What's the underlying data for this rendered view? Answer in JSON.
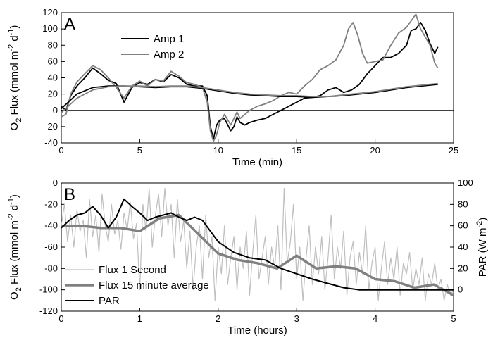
{
  "chart_data": [
    {
      "panel_label": "A",
      "type": "line",
      "xlabel": "Time (min)",
      "ylabel_main": "O",
      "ylabel_sub1": "2",
      "ylabel_mid": " Flux (mmol m",
      "ylabel_sup1": "-2",
      "ylabel_mid2": " d",
      "ylabel_sup2": "-1",
      "ylabel_end": ")",
      "xlim": [
        0,
        25
      ],
      "ylim": [
        -40,
        120
      ],
      "xticks": [
        "0",
        "5",
        "10",
        "15",
        "20",
        "25"
      ],
      "yticks": [
        "-40",
        "-20",
        "0",
        "20",
        "40",
        "60",
        "80",
        "100",
        "120"
      ],
      "zero_line": true,
      "legend": {
        "placement": "upper-left",
        "entries": [
          "Amp 1",
          "Amp 2"
        ]
      },
      "series": [
        {
          "name": "Amp 1",
          "color": "#000000",
          "x": [
            0,
            0.3,
            0.6,
            1.0,
            1.5,
            2.0,
            2.5,
            3.0,
            3.5,
            4.0,
            4.5,
            5.0,
            5.5,
            6.0,
            6.5,
            7.0,
            7.5,
            8.0,
            8.5,
            9.0,
            9.3,
            9.5,
            9.7,
            9.9,
            10.1,
            10.4,
            10.8,
            11.0,
            11.2,
            11.4,
            11.7,
            12.0,
            12.5,
            13.0,
            13.5,
            14.0,
            14.5,
            15.0,
            15.5,
            16.0,
            16.5,
            17.0,
            17.5,
            18.0,
            18.5,
            19.0,
            19.5,
            20.0,
            20.5,
            21.0,
            21.5,
            22.0,
            22.3,
            22.6,
            22.9,
            23.2,
            23.5,
            23.8,
            24.0
          ],
          "y": [
            5,
            0,
            18,
            30,
            40,
            52,
            45,
            37,
            33,
            10,
            28,
            34,
            32,
            38,
            35,
            44,
            40,
            32,
            30,
            30,
            18,
            -20,
            -35,
            -18,
            -12,
            -10,
            -25,
            -20,
            -8,
            -15,
            -18,
            -15,
            -12,
            -10,
            -5,
            0,
            5,
            10,
            15,
            16,
            18,
            25,
            28,
            22,
            25,
            32,
            45,
            55,
            65,
            65,
            70,
            80,
            98,
            100,
            108,
            98,
            82,
            70,
            78
          ]
        },
        {
          "name": "Amp 2",
          "color": "#808080",
          "x": [
            0,
            0.3,
            0.6,
            1.0,
            1.5,
            2.0,
            2.5,
            3.0,
            3.5,
            4.0,
            4.5,
            5.0,
            5.5,
            6.0,
            6.5,
            7.0,
            7.5,
            8.0,
            8.5,
            9.0,
            9.3,
            9.5,
            9.7,
            9.9,
            10.1,
            10.4,
            10.8,
            11.0,
            11.2,
            11.4,
            11.7,
            12.0,
            12.5,
            13.0,
            13.5,
            14.0,
            14.5,
            15.0,
            15.5,
            16.0,
            16.5,
            17.0,
            17.5,
            18.0,
            18.3,
            18.6,
            18.9,
            19.2,
            19.5,
            20.0,
            20.5,
            21.0,
            21.5,
            22.0,
            22.3,
            22.6,
            22.9,
            23.2,
            23.5,
            23.8,
            24.0
          ],
          "y": [
            -8,
            -5,
            20,
            35,
            45,
            55,
            50,
            40,
            28,
            15,
            30,
            36,
            30,
            38,
            36,
            48,
            42,
            34,
            32,
            28,
            10,
            -25,
            -38,
            -30,
            -15,
            -5,
            -18,
            -10,
            -2,
            -10,
            -5,
            0,
            5,
            8,
            12,
            18,
            22,
            20,
            30,
            38,
            50,
            55,
            62,
            80,
            100,
            108,
            92,
            70,
            58,
            60,
            62,
            80,
            95,
            102,
            110,
            118,
            100,
            90,
            80,
            58,
            52
          ]
        },
        {
          "name": "",
          "color": "#000000",
          "x": [
            0,
            1,
            2,
            3,
            4,
            5,
            6,
            7,
            8,
            9,
            10,
            11,
            12,
            13,
            14,
            15,
            16,
            17,
            18,
            19,
            20,
            21,
            22,
            23,
            24
          ],
          "y": [
            2,
            20,
            28,
            30,
            30,
            29,
            28,
            29,
            29,
            27,
            24,
            21,
            19,
            18,
            17,
            17,
            16,
            17,
            18,
            20,
            22,
            25,
            28,
            30,
            32
          ]
        },
        {
          "name": "",
          "color": "#808080",
          "x": [
            0,
            1,
            2,
            3,
            4,
            5,
            6,
            7,
            8,
            9,
            10,
            11,
            12,
            13,
            14,
            15,
            16,
            17,
            18,
            19,
            20,
            21,
            22,
            23,
            24
          ],
          "y": [
            -3,
            15,
            25,
            29,
            30,
            30,
            29,
            30,
            30,
            28,
            25,
            22,
            20,
            19,
            18,
            18,
            17,
            17,
            19,
            21,
            23,
            26,
            29,
            31,
            33
          ]
        }
      ]
    },
    {
      "panel_label": "B",
      "type": "line",
      "xlabel": "Time (hours)",
      "ylabel_main": "O",
      "ylabel_sub1": "2",
      "ylabel_mid": " Flux (mmol m",
      "ylabel_sup1": "-2",
      "ylabel_mid2": " d",
      "ylabel_sup2": "-1",
      "ylabel_end": ")",
      "y2label_main": "PAR (W m",
      "y2label_sup": "-2",
      "y2label_end": ")",
      "xlim": [
        0,
        5
      ],
      "ylim": [
        -120,
        0
      ],
      "y2lim": [
        -20,
        100
      ],
      "xticks": [
        "0",
        "1",
        "2",
        "3",
        "4",
        "5"
      ],
      "yticks": [
        "-120",
        "-100",
        "-80",
        "-60",
        "-40",
        "-20",
        "0"
      ],
      "y2ticks": [
        "0",
        "20",
        "40",
        "60",
        "80",
        "100"
      ],
      "legend": {
        "placement": "lower-left",
        "entries": [
          "Flux 1 Second",
          "Flux 15 minute average",
          "PAR"
        ]
      },
      "series": [
        {
          "name": "Flux 1 Second",
          "color": "#bfbfbf",
          "axis": "left",
          "x": [
            0,
            0.04,
            0.08,
            0.12,
            0.16,
            0.2,
            0.24,
            0.28,
            0.32,
            0.36,
            0.4,
            0.44,
            0.48,
            0.52,
            0.56,
            0.6,
            0.64,
            0.68,
            0.72,
            0.76,
            0.8,
            0.84,
            0.88,
            0.92,
            0.96,
            1.0,
            1.04,
            1.08,
            1.12,
            1.16,
            1.2,
            1.24,
            1.28,
            1.32,
            1.36,
            1.4,
            1.44,
            1.48,
            1.52,
            1.56,
            1.6,
            1.64,
            1.68,
            1.72,
            1.76,
            1.8,
            1.84,
            1.88,
            1.92,
            1.96,
            2.0,
            2.04,
            2.08,
            2.12,
            2.16,
            2.2,
            2.24,
            2.28,
            2.32,
            2.36,
            2.4,
            2.44,
            2.48,
            2.52,
            2.56,
            2.6,
            2.64,
            2.68,
            2.72,
            2.76,
            2.8,
            2.84,
            2.88,
            2.92,
            2.96,
            3.0,
            3.04,
            3.08,
            3.12,
            3.16,
            3.2,
            3.24,
            3.28,
            3.32,
            3.36,
            3.4,
            3.44,
            3.48,
            3.52,
            3.56,
            3.6,
            3.64,
            3.68,
            3.72,
            3.76,
            3.8,
            3.84,
            3.88,
            3.92,
            3.96,
            4.0,
            4.04,
            4.08,
            4.12,
            4.16,
            4.2,
            4.24,
            4.28,
            4.32,
            4.36,
            4.4,
            4.44,
            4.48,
            4.52,
            4.56,
            4.6,
            4.64,
            4.68,
            4.72,
            4.76,
            4.8,
            4.84,
            4.88,
            4.92,
            4.96,
            5.0
          ],
          "y": [
            -40,
            -20,
            -55,
            -30,
            -60,
            -25,
            -45,
            -35,
            -70,
            -15,
            -50,
            -30,
            -65,
            -10,
            -40,
            -55,
            -20,
            -48,
            -35,
            -62,
            -28,
            -44,
            -18,
            -52,
            -38,
            -100,
            -20,
            -45,
            -5,
            -60,
            -30,
            -10,
            -50,
            -5,
            -40,
            -20,
            -70,
            -15,
            -55,
            -35,
            -80,
            -45,
            -100,
            -60,
            -40,
            -90,
            -30,
            -70,
            -50,
            -110,
            -60,
            -85,
            -40,
            -95,
            -70,
            -50,
            -100,
            -60,
            -80,
            -45,
            -105,
            -65,
            -30,
            -90,
            -70,
            -50,
            -95,
            -60,
            -80,
            -40,
            -100,
            -5,
            -75,
            -55,
            -20,
            -90,
            -60,
            -110,
            -70,
            -40,
            -95,
            -60,
            -85,
            -50,
            -100,
            -70,
            -30,
            -90,
            -60,
            -80,
            -45,
            -105,
            -70,
            -55,
            -95,
            -65,
            -85,
            -40,
            -100,
            -75,
            -60,
            -110,
            -80,
            -55,
            -95,
            -70,
            -90,
            -60,
            -105,
            -75,
            -85,
            -65,
            -100,
            -80,
            -95,
            -70,
            -110,
            -85,
            -95,
            -75,
            -100,
            -90,
            -110,
            -95,
            -105,
            -100
          ]
        },
        {
          "name": "Flux 15 minute average",
          "color": "#808080",
          "axis": "left",
          "x": [
            0,
            0.25,
            0.5,
            0.75,
            1.0,
            1.25,
            1.5,
            1.75,
            2.0,
            2.25,
            2.5,
            2.75,
            3.0,
            3.25,
            3.5,
            3.75,
            4.0,
            4.25,
            4.5,
            4.75,
            5.0
          ],
          "y": [
            -40,
            -40,
            -42,
            -42,
            -45,
            -33,
            -30,
            -48,
            -66,
            -72,
            -75,
            -80,
            -68,
            -80,
            -78,
            -80,
            -90,
            -92,
            -98,
            -95,
            -105
          ]
        },
        {
          "name": "PAR",
          "color": "#000000",
          "axis": "right",
          "x": [
            0,
            0.1,
            0.2,
            0.3,
            0.4,
            0.5,
            0.6,
            0.7,
            0.8,
            0.9,
            1.0,
            1.1,
            1.2,
            1.3,
            1.4,
            1.5,
            1.6,
            1.7,
            1.8,
            1.9,
            2.0,
            2.2,
            2.4,
            2.6,
            2.8,
            3.0,
            3.2,
            3.4,
            3.6,
            3.8,
            4.0,
            4.2,
            4.4,
            4.6,
            4.8,
            5.0
          ],
          "y": [
            58,
            65,
            70,
            72,
            78,
            70,
            58,
            68,
            85,
            78,
            72,
            65,
            68,
            70,
            72,
            68,
            65,
            68,
            65,
            55,
            45,
            35,
            30,
            28,
            20,
            15,
            10,
            6,
            2,
            0,
            0,
            0,
            0,
            0,
            0,
            0
          ]
        }
      ]
    }
  ]
}
